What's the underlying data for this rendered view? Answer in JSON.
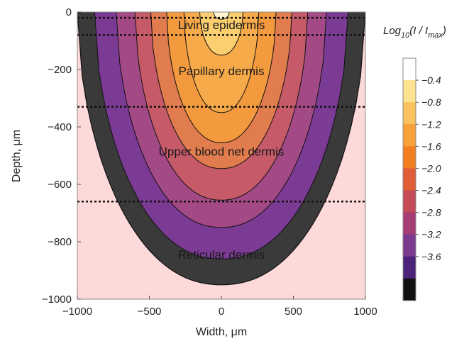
{
  "chart_data": {
    "type": "heatmap",
    "xlabel": "Width, μm",
    "ylabel": "Depth, μm",
    "xlim": [
      -1000,
      1000
    ],
    "ylim": [
      -1000,
      0
    ],
    "x_ticks": [
      -1000,
      -500,
      0,
      500,
      1000
    ],
    "y_ticks": [
      0,
      -200,
      -400,
      -600,
      -800,
      -1000
    ],
    "colorbar": {
      "title_main": "Log",
      "title_sub": "10",
      "title_rest": "(I / I",
      "title_max": "max",
      "title_end": ")",
      "levels": [
        -0.4,
        -0.8,
        -1.2,
        -1.6,
        -2.0,
        -2.4,
        -2.8,
        -3.2,
        -3.6
      ],
      "level_labels": [
        "-0.4",
        "-0.8",
        "-1.2",
        "-1.6",
        "-2.0",
        "-2.4",
        "-2.8",
        "-3.2",
        "-3.6"
      ],
      "colors": [
        "#ffffff",
        "#fde38f",
        "#fbc15e",
        "#f9a03a",
        "#f17f22",
        "#e05d38",
        "#c54a57",
        "#a33d74",
        "#7c3a8f",
        "#4c237a",
        "#111111"
      ]
    },
    "contours": [
      {
        "level": -3.6,
        "half_width": 1000,
        "depth": 950,
        "color": "#3a3a3a"
      },
      {
        "level": -3.2,
        "half_width": 880,
        "depth": 860,
        "color": "#7b3b94"
      },
      {
        "level": -2.8,
        "half_width": 730,
        "depth": 750,
        "color": "#a34a86"
      },
      {
        "level": -2.4,
        "half_width": 600,
        "depth": 655,
        "color": "#c65a68"
      },
      {
        "level": -2.0,
        "half_width": 490,
        "depth": 545,
        "color": "#e07c4e"
      },
      {
        "level": -1.6,
        "half_width": 380,
        "depth": 455,
        "color": "#f39a3e"
      },
      {
        "level": -1.2,
        "half_width": 260,
        "depth": 350,
        "color": "#f7aa49"
      },
      {
        "level": -0.8,
        "half_width": 150,
        "depth": 150,
        "color": "#fbcf70"
      },
      {
        "level": -0.4,
        "half_width": 55,
        "depth": 25,
        "color": "#fff6d0"
      }
    ],
    "layer_boundaries": [
      -20,
      -80,
      -330,
      -660
    ],
    "regions": [
      {
        "label": "Living epidermis",
        "y": -45
      },
      {
        "label": "Papillary dermis",
        "y": -205
      },
      {
        "label": "Upper blood net dermis",
        "y": -485
      },
      {
        "label": "Reticular dermis",
        "y": -845
      }
    ],
    "background_color": "#fdd9da"
  }
}
